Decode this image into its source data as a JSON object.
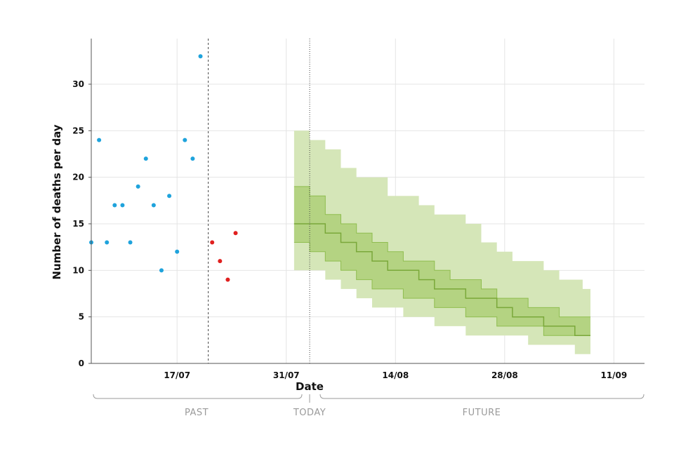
{
  "chart_data": {
    "type": "scatter",
    "xlabel": "Date",
    "ylabel": "Number of deaths per day",
    "ylim": [
      0,
      35
    ],
    "xlim_days": [
      0,
      63.8
    ],
    "x_ticks": [
      {
        "label": "17/07",
        "day": 11
      },
      {
        "label": "31/07",
        "day": 25
      },
      {
        "label": "14/08",
        "day": 39
      },
      {
        "label": "28/08",
        "day": 53
      },
      {
        "label": "11/09",
        "day": 67
      }
    ],
    "y_ticks": [
      0,
      5,
      10,
      15,
      20,
      25,
      30
    ],
    "grid": true,
    "colors": {
      "observed": "#1fa3dc",
      "recent": "#e0201f",
      "band_outer": "#d5e6b8",
      "band_inner": "#aecf78",
      "band_lines": "#8fbd4f",
      "median": "#7aa83a",
      "axis": "#555555",
      "grid": "#e4e4e4",
      "period_text": "#9a9a9a"
    },
    "observed_points": {
      "name": "observed",
      "x": [
        0,
        1,
        2,
        3,
        4,
        5,
        6,
        7,
        8,
        9,
        10,
        11,
        12,
        13,
        14
      ],
      "y": [
        13,
        24,
        13,
        17,
        17,
        13,
        19,
        22,
        17,
        10,
        18,
        12,
        24,
        22,
        33
      ]
    },
    "recent_points": {
      "name": "recent",
      "x": [
        15,
        16,
        17,
        18
      ],
      "y": [
        13,
        11,
        9,
        14
      ]
    },
    "reporting_cutoff_day": 13.5,
    "today_day": 25.9,
    "forecast": {
      "x": [
        26,
        28,
        30,
        32,
        34,
        36,
        38,
        40,
        42,
        44,
        46,
        48,
        50,
        52,
        54,
        56,
        58,
        60,
        62,
        63
      ],
      "lower_outer": [
        10,
        10,
        9,
        8,
        7,
        6,
        6,
        5,
        5,
        4,
        4,
        3,
        3,
        3,
        3,
        2,
        2,
        2,
        1,
        1
      ],
      "upper_outer": [
        25,
        24,
        23,
        21,
        20,
        20,
        18,
        18,
        17,
        16,
        16,
        15,
        13,
        12,
        11,
        11,
        10,
        9,
        9,
        8
      ],
      "lower_inner": [
        13,
        12,
        11,
        10,
        9,
        8,
        8,
        7,
        7,
        6,
        6,
        5,
        5,
        4,
        4,
        4,
        3,
        3,
        3,
        3
      ],
      "upper_inner": [
        19,
        18,
        16,
        15,
        14,
        13,
        12,
        11,
        11,
        10,
        9,
        9,
        8,
        7,
        7,
        6,
        6,
        5,
        5,
        5
      ],
      "median": [
        15,
        15,
        14,
        13,
        12,
        11,
        10,
        10,
        9,
        8,
        8,
        7,
        7,
        6,
        5,
        5,
        4,
        4,
        3,
        3
      ]
    },
    "periods": {
      "past": "PAST",
      "today": "TODAY",
      "future": "FUTURE"
    }
  }
}
